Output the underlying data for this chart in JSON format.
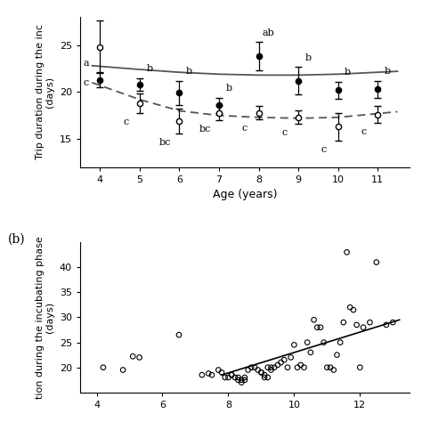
{
  "panel_a": {
    "ages": [
      4,
      5,
      6,
      7,
      8,
      9,
      10,
      11
    ],
    "filled_means": [
      21.3,
      20.8,
      19.9,
      18.6,
      23.8,
      21.2,
      20.2,
      20.3
    ],
    "filled_se_up": [
      0.8,
      0.7,
      1.3,
      0.8,
      1.5,
      1.5,
      0.9,
      0.9
    ],
    "filled_se_dn": [
      0.8,
      0.7,
      1.3,
      0.8,
      1.5,
      1.5,
      0.9,
      0.9
    ],
    "open_means": [
      24.8,
      18.8,
      16.9,
      17.8,
      17.8,
      17.3,
      16.3,
      17.6
    ],
    "open_se_up": [
      2.8,
      1.0,
      1.3,
      0.8,
      0.7,
      0.7,
      1.5,
      0.9
    ],
    "open_se_dn": [
      2.8,
      1.0,
      1.3,
      0.8,
      0.7,
      0.7,
      1.5,
      0.9
    ],
    "solid_line_x": [
      3.8,
      5,
      6,
      7,
      8,
      9,
      10,
      11,
      11.5
    ],
    "solid_line_y": [
      22.8,
      22.4,
      22.1,
      21.9,
      21.8,
      21.8,
      21.9,
      22.1,
      22.2
    ],
    "dashed_line_x": [
      3.8,
      5,
      6,
      7,
      8,
      9,
      10,
      11,
      11.5
    ],
    "dashed_line_y": [
      21.0,
      19.2,
      18.0,
      17.5,
      17.3,
      17.2,
      17.3,
      17.7,
      17.9
    ],
    "filled_labels": [
      "a",
      "b",
      "b",
      "b",
      "ab",
      "b",
      "b",
      "b"
    ],
    "open_labels": [
      "c",
      "c",
      "bc",
      "bc",
      "c",
      "c",
      "c",
      "c"
    ],
    "ylim": [
      12,
      28
    ],
    "yticks": [
      15,
      20,
      25
    ],
    "xlabel": "Age (years)",
    "ylabel": "Trip duration during the inc\n(days)"
  },
  "panel_b": {
    "scatter_x": [
      4.2,
      4.8,
      5.1,
      5.3,
      6.5,
      7.2,
      7.4,
      7.5,
      7.7,
      7.8,
      7.9,
      8.0,
      8.1,
      8.1,
      8.2,
      8.3,
      8.3,
      8.4,
      8.4,
      8.5,
      8.5,
      8.6,
      8.7,
      8.8,
      8.9,
      9.0,
      9.0,
      9.1,
      9.1,
      9.2,
      9.2,
      9.3,
      9.3,
      9.4,
      9.5,
      9.6,
      9.7,
      9.8,
      9.9,
      10.0,
      10.1,
      10.2,
      10.3,
      10.4,
      10.5,
      10.6,
      10.7,
      10.8,
      10.9,
      11.0,
      11.1,
      11.2,
      11.3,
      11.4,
      11.5,
      11.6,
      11.7,
      11.8,
      11.9,
      12.0,
      12.1,
      12.3,
      12.5,
      12.8,
      13.0
    ],
    "scatter_y": [
      20.0,
      19.5,
      22.2,
      22.0,
      26.5,
      18.5,
      18.8,
      18.5,
      19.5,
      19.0,
      18.0,
      18.0,
      18.5,
      18.5,
      18.0,
      18.0,
      17.5,
      17.5,
      17.0,
      17.5,
      18.0,
      19.5,
      20.0,
      20.0,
      19.5,
      19.0,
      19.0,
      18.5,
      18.0,
      18.0,
      20.0,
      20.0,
      19.5,
      20.0,
      20.5,
      21.0,
      21.5,
      20.0,
      22.0,
      24.5,
      20.0,
      20.5,
      20.0,
      25.0,
      23.0,
      29.5,
      28.0,
      28.0,
      25.0,
      20.0,
      20.0,
      19.5,
      22.5,
      25.0,
      29.0,
      43.0,
      32.0,
      31.5,
      28.5,
      20.0,
      28.0,
      29.0,
      41.0,
      28.5,
      29.0
    ],
    "line_x": [
      7.8,
      13.2
    ],
    "line_y": [
      18.5,
      29.5
    ],
    "ylim": [
      15,
      45
    ],
    "yticks": [
      20,
      25,
      30,
      35,
      40
    ],
    "xlim": [
      3.5,
      13.5
    ],
    "xticks": [
      4,
      6,
      8,
      10,
      12
    ],
    "ylabel": "tion during the incubating phase\n(days)",
    "xlabel": ""
  },
  "bg_color": "#ffffff",
  "marker_color": "#000000",
  "fontsize": 9,
  "label_fontsize": 8
}
